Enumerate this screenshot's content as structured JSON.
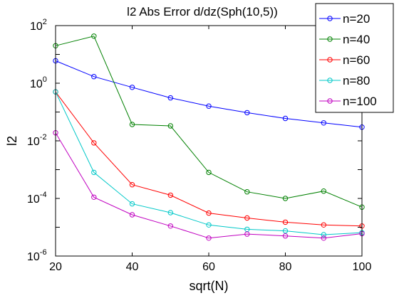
{
  "chart_data": {
    "type": "line",
    "title": "l2 Abs Error d/dz(Sph(10,5))",
    "xlabel": "sqrt(N)",
    "ylabel": "l2",
    "xlim": [
      20,
      100
    ],
    "ylim": [
      1e-06,
      100.0
    ],
    "yscale": "log",
    "grid": false,
    "legend_position": "top-right",
    "x_ticks": [
      {
        "value": 20,
        "label": "20"
      },
      {
        "value": 40,
        "label": "40"
      },
      {
        "value": 60,
        "label": "60"
      },
      {
        "value": 80,
        "label": "80"
      },
      {
        "value": 100,
        "label": "100"
      }
    ],
    "y_ticks": [
      {
        "value": 100.0,
        "base": "10",
        "exp": "2"
      },
      {
        "value": 1.0,
        "base": "10",
        "exp": "0"
      },
      {
        "value": 0.01,
        "base": "10",
        "exp": "-2"
      },
      {
        "value": 0.0001,
        "base": "10",
        "exp": "-4"
      },
      {
        "value": 1e-06,
        "base": "10",
        "exp": "-6"
      }
    ],
    "x": [
      20,
      30,
      40,
      50,
      60,
      70,
      80,
      90,
      100
    ],
    "series": [
      {
        "name": "n=20",
        "color": "#0000ff",
        "values": [
          6.0,
          1.7,
          0.72,
          0.31,
          0.16,
          0.095,
          0.06,
          0.042,
          0.03
        ]
      },
      {
        "name": "n=40",
        "color": "#008000",
        "values": [
          20,
          43,
          0.037,
          0.033,
          0.0008,
          0.00017,
          0.0001,
          0.00018,
          5e-05
        ]
      },
      {
        "name": "n=60",
        "color": "#ff0000",
        "values": [
          0.5,
          0.0085,
          0.0003,
          0.00013,
          3.1e-05,
          2.1e-05,
          1.5e-05,
          1.2e-05,
          1.1e-05
        ]
      },
      {
        "name": "n=80",
        "color": "#00c8c8",
        "values": [
          0.5,
          0.0008,
          6.5e-05,
          3.2e-05,
          1.2e-05,
          8.5e-06,
          7.5e-06,
          5.5e-06,
          6.5e-06
        ]
      },
      {
        "name": "n=100",
        "color": "#c000c0",
        "values": [
          0.019,
          0.00011,
          2.7e-05,
          1.1e-05,
          4.2e-06,
          5.8e-06,
          5e-06,
          4.2e-06,
          6e-06
        ]
      }
    ]
  }
}
